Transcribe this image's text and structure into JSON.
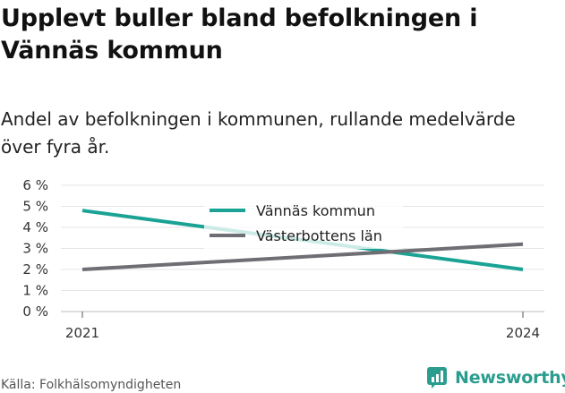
{
  "title": "Upplevt buller bland befolkningen i Vännäs kommun",
  "subtitle": "Andel av befolkningen i kommunen, rullande medelvärde över fyra år.",
  "source": "Källa: Folkhälsomyndigheten",
  "brand": "Newsworthy",
  "colors": {
    "accent": "#2a9d8f"
  },
  "chart_data": {
    "type": "line",
    "x": [
      "2021",
      "2024"
    ],
    "y_ticks": [
      "0 %",
      "1 %",
      "2 %",
      "3 %",
      "4 %",
      "5 %",
      "6 %"
    ],
    "ylim": [
      0,
      6
    ],
    "grid": true,
    "legend_placement": "top-center",
    "series": [
      {
        "name": "Vännäs kommun",
        "values": [
          4.8,
          2.0
        ],
        "color": "#1aa394"
      },
      {
        "name": "Västerbottens län",
        "values": [
          2.0,
          3.2
        ],
        "color": "#6e6e74"
      }
    ]
  }
}
